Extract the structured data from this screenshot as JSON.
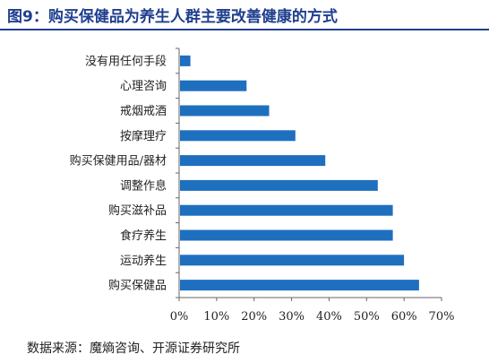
{
  "figure": {
    "title": "图9：购买保健品为养生人群主要改善健康的方式",
    "source": "数据来源：魔熵咨询、开源证券研究所",
    "bar_color": "#1f6fbf",
    "title_color": "#1f3f8f"
  },
  "chart_data": {
    "type": "bar",
    "orientation": "horizontal",
    "title": "",
    "xlabel": "",
    "ylabel": "",
    "categories": [
      "没有用任何手段",
      "心理咨询",
      "戒烟戒酒",
      "按摩理疗",
      "购买保健用品/器材",
      "调整作息",
      "购买滋补品",
      "食疗养生",
      "运动养生",
      "购买保健品"
    ],
    "values": [
      3,
      18,
      24,
      31,
      39,
      53,
      57,
      57,
      60,
      64
    ],
    "xlim": [
      0,
      70
    ],
    "xticks": [
      "0%",
      "10%",
      "20%",
      "30%",
      "40%",
      "50%",
      "60%",
      "70%"
    ],
    "grid": false,
    "legend": "none"
  }
}
